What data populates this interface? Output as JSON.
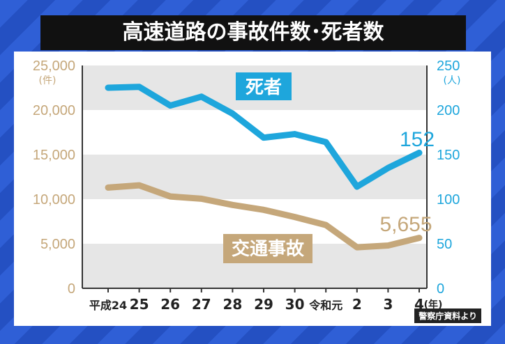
{
  "chart_data": {
    "type": "line",
    "title": "高速道路の事故件数･死者数",
    "categories": [
      "平成24",
      "25",
      "26",
      "27",
      "28",
      "29",
      "30",
      "令和元",
      "2",
      "3",
      "4"
    ],
    "x_suffix": "(年)",
    "left_axis": {
      "unit": "(件)",
      "ticks": [
        "0",
        "5,000",
        "10,000",
        "15,000",
        "20,000",
        "25,000"
      ],
      "ylim": [
        0,
        25000
      ]
    },
    "right_axis": {
      "unit": "(人)",
      "ticks": [
        "0",
        "50",
        "100",
        "150",
        "200",
        "250"
      ],
      "ylim": [
        0,
        250
      ]
    },
    "series": [
      {
        "name": "死者",
        "axis": "right",
        "color": "#1ea6dc",
        "label": "死者",
        "values": [
          225,
          226,
          205,
          215,
          196,
          169,
          173,
          164,
          114,
          135,
          152
        ],
        "end_label": "152"
      },
      {
        "name": "交通事故",
        "axis": "left",
        "color": "#c5a77a",
        "label": "交通事故",
        "values": [
          11300,
          11550,
          10300,
          10050,
          9350,
          8800,
          8000,
          7100,
          4600,
          4800,
          5655
        ],
        "end_label": "5,655"
      }
    ],
    "grid": true
  },
  "source": "警察庁資料より",
  "colors": {
    "left_axis": "#c5a77a",
    "right_axis": "#1ea6dc",
    "band": "#e6e6e6"
  }
}
